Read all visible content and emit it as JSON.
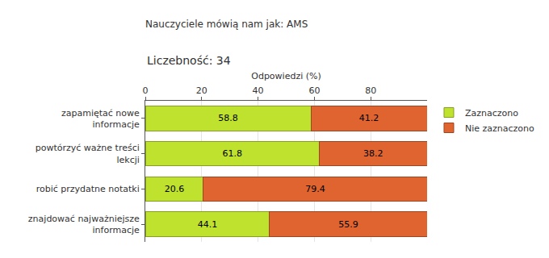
{
  "chart_data": {
    "type": "bar",
    "orientation": "horizontal",
    "stacked": true,
    "title": "Nauczyciele mówią nam jak: AMS",
    "subtitle": "Liczebność: 34",
    "x_label": "Odpowiedzi (%)",
    "categories": [
      "zapamiętać nowe informacje",
      "powtórzyć ważne treści lekcji",
      "robić przydatne notatki",
      "znajdować najważniejsze informacje"
    ],
    "series": [
      {
        "name": "Zaznaczono",
        "color": "#bfe22f",
        "values": [
          58.8,
          61.8,
          20.6,
          44.1
        ]
      },
      {
        "name": "Nie zaznaczono",
        "color": "#e06430",
        "values": [
          41.2,
          38.2,
          79.4,
          55.9
        ]
      }
    ],
    "xlim": [
      0,
      100
    ],
    "xticks": [
      0,
      20,
      40,
      60,
      80
    ],
    "grid": true,
    "data_labels": true,
    "legend": "right"
  }
}
